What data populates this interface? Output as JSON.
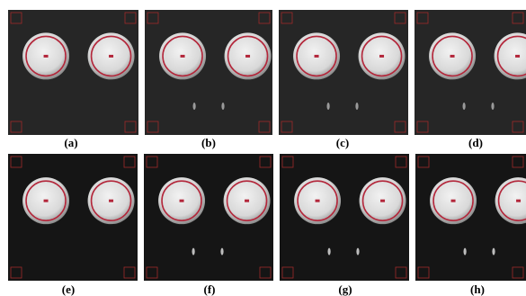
{
  "panels": [
    {
      "label": "(a)",
      "marks": false,
      "tone": "grey"
    },
    {
      "label": "(b)",
      "marks": true,
      "tone": "grey"
    },
    {
      "label": "(c)",
      "marks": true,
      "tone": "grey"
    },
    {
      "label": "(d)",
      "marks": true,
      "tone": "grey"
    },
    {
      "label": "(e)",
      "marks": false,
      "tone": "dark"
    },
    {
      "label": "(f)",
      "marks": true,
      "tone": "dark"
    },
    {
      "label": "(g)",
      "marks": true,
      "tone": "dark"
    },
    {
      "label": "(h)",
      "marks": true,
      "tone": "dark"
    }
  ],
  "colors": {
    "background_grey": "#262626",
    "background_dark": "#151515",
    "ring": "#b3263a",
    "corner_box": "#9e2a2a",
    "dish": "#d8d8d8"
  }
}
